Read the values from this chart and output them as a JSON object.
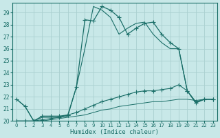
{
  "xlabel": "Humidex (Indice chaleur)",
  "bg_color": "#c8e8e8",
  "grid_color": "#aad0d0",
  "line_color": "#1a6e68",
  "xlim": [
    -0.5,
    23.5
  ],
  "ylim": [
    20,
    29.8
  ],
  "yticks": [
    20,
    21,
    22,
    23,
    24,
    25,
    26,
    27,
    28,
    29
  ],
  "xticks": [
    0,
    1,
    2,
    3,
    4,
    5,
    6,
    7,
    8,
    9,
    10,
    11,
    12,
    13,
    14,
    15,
    16,
    17,
    18,
    19,
    20,
    21,
    22,
    23
  ],
  "series": [
    {
      "x": [
        0,
        1,
        2,
        3,
        4,
        5,
        6,
        7,
        8,
        9,
        10,
        11,
        12,
        13,
        14,
        15,
        16,
        17,
        18,
        19,
        20,
        21,
        22,
        23
      ],
      "y": [
        21.8,
        21.2,
        20.0,
        20.4,
        20.4,
        20.4,
        20.5,
        22.8,
        28.4,
        28.3,
        29.5,
        29.2,
        28.6,
        27.2,
        27.7,
        28.1,
        28.2,
        27.2,
        26.5,
        26.0,
        22.5,
        21.5,
        21.8,
        21.8
      ],
      "marker": "+",
      "markersize": 4,
      "linewidth": 0.9
    },
    {
      "x": [
        0,
        1,
        2,
        3,
        4,
        5,
        6,
        7,
        8,
        9,
        10,
        11,
        12,
        13,
        14,
        15,
        16,
        17,
        18,
        19,
        20,
        21,
        22,
        23
      ],
      "y": [
        21.8,
        21.2,
        20.0,
        20.3,
        20.3,
        20.3,
        20.4,
        22.8,
        26.0,
        29.5,
        29.2,
        28.6,
        27.2,
        27.7,
        28.1,
        28.2,
        27.2,
        26.5,
        26.0,
        26.0,
        22.5,
        21.5,
        21.8,
        21.8
      ],
      "marker": null,
      "markersize": 0,
      "linewidth": 0.8
    },
    {
      "x": [
        0,
        1,
        2,
        3,
        4,
        5,
        6,
        7,
        8,
        9,
        10,
        11,
        12,
        13,
        14,
        15,
        16,
        17,
        18,
        19,
        20,
        21,
        22,
        23
      ],
      "y": [
        20.0,
        20.0,
        20.0,
        20.1,
        20.2,
        20.3,
        20.5,
        20.7,
        21.0,
        21.3,
        21.6,
        21.8,
        22.0,
        22.2,
        22.4,
        22.5,
        22.5,
        22.6,
        22.7,
        23.0,
        22.5,
        21.6,
        21.8,
        21.8
      ],
      "marker": "+",
      "markersize": 4,
      "linewidth": 0.8
    },
    {
      "x": [
        0,
        1,
        2,
        3,
        4,
        5,
        6,
        7,
        8,
        9,
        10,
        11,
        12,
        13,
        14,
        15,
        16,
        17,
        18,
        19,
        20,
        21,
        22,
        23
      ],
      "y": [
        20.0,
        20.0,
        20.0,
        20.0,
        20.1,
        20.2,
        20.3,
        20.4,
        20.5,
        20.7,
        20.9,
        21.0,
        21.2,
        21.3,
        21.4,
        21.5,
        21.6,
        21.6,
        21.7,
        21.8,
        21.8,
        21.7,
        21.8,
        21.8
      ],
      "marker": null,
      "markersize": 0,
      "linewidth": 0.7
    }
  ]
}
